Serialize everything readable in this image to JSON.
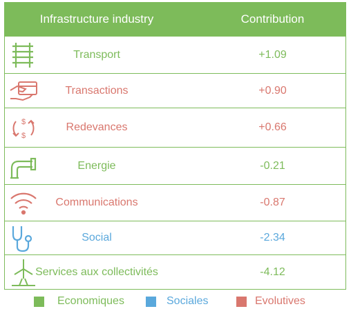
{
  "header": {
    "col1": "Infrastructure industry",
    "col2": "Contribution"
  },
  "colors": {
    "economiques": "#7dbb5a",
    "sociales": "#5aa8dc",
    "evolutives": "#d9776e"
  },
  "rows": [
    {
      "icon": "railway-track-icon",
      "label": "Transport",
      "value": "+1.09",
      "category": "economiques"
    },
    {
      "icon": "card-payment-icon",
      "label": "Transactions",
      "value": "+0.90",
      "category": "evolutives"
    },
    {
      "icon": "money-cycle-icon",
      "label": "Redevances",
      "value": "+0.66",
      "category": "evolutives"
    },
    {
      "icon": "pipe-icon",
      "label": "Energie",
      "value": "-0.21",
      "category": "economiques"
    },
    {
      "icon": "wifi-icon",
      "label": "Communications",
      "value": "-0.87",
      "category": "evolutives"
    },
    {
      "icon": "stethoscope-icon",
      "label": "Social",
      "value": "-2.34",
      "category": "sociales"
    },
    {
      "icon": "wind-turbine-icon",
      "label": "Services aux collectivités",
      "value": "-4.12",
      "category": "economiques"
    }
  ],
  "legend": [
    {
      "label": "Economiques",
      "category": "economiques"
    },
    {
      "label": "Sociales",
      "category": "sociales"
    },
    {
      "label": "Evolutives",
      "category": "evolutives"
    }
  ]
}
